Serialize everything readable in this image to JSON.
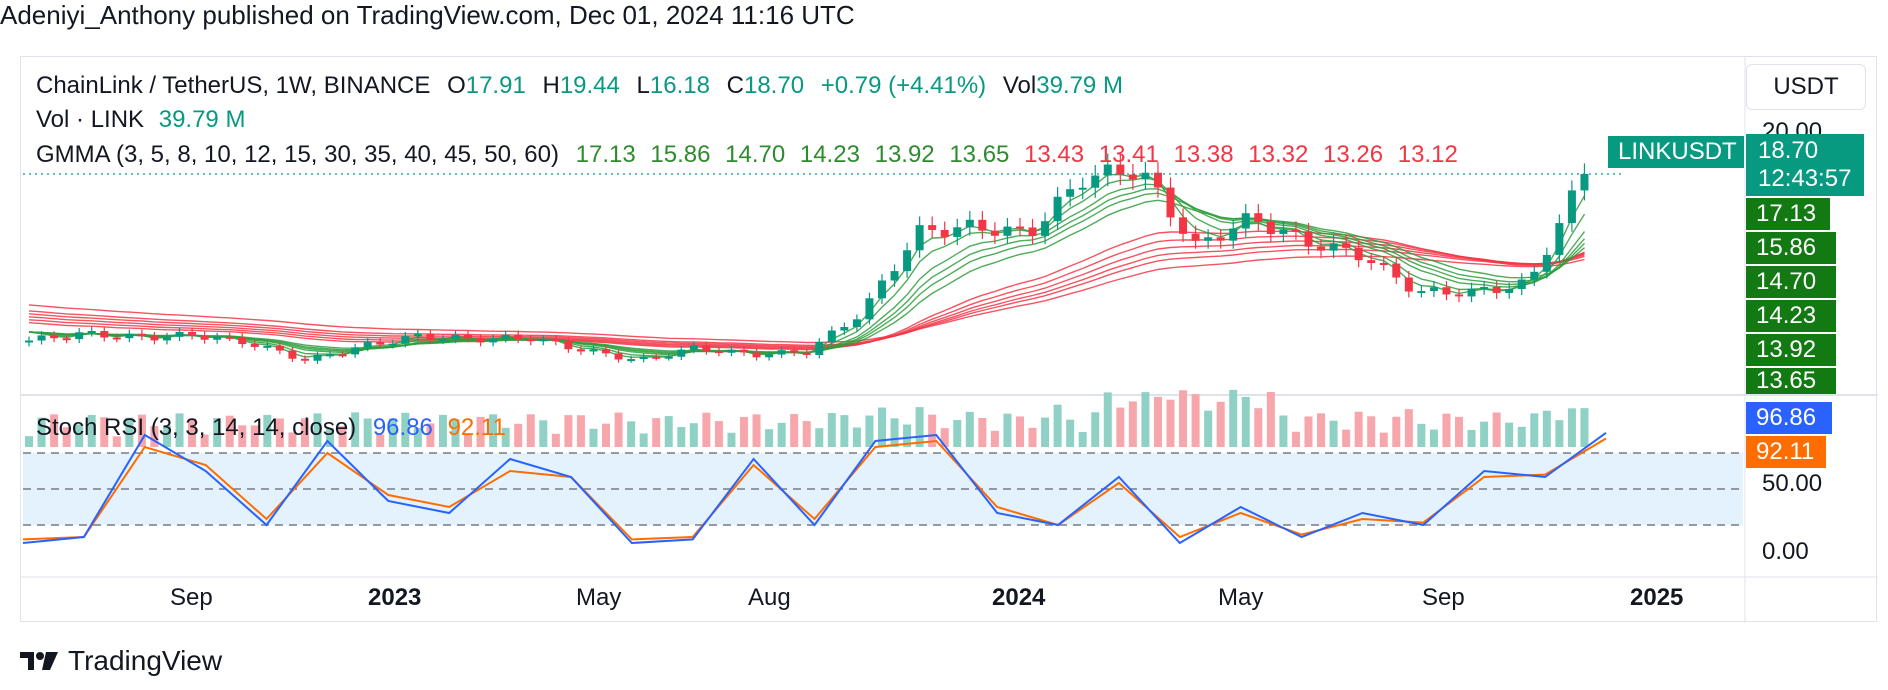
{
  "header": {
    "published_line": "Adeniyi_Anthony published on TradingView.com, Dec 01, 2024 11:16 UTC"
  },
  "symbol_legend": {
    "name": "ChainLink / TetherUS, 1W, BINANCE",
    "o_label": "O",
    "o_value": "17.91",
    "h_label": "H",
    "h_value": "19.44",
    "l_label": "L",
    "l_value": "16.18",
    "c_label": "C",
    "c_value": "18.70",
    "change": "+0.79 (+4.41%)",
    "vol_label": "Vol",
    "vol_value": "39.79 M"
  },
  "volume_legend": {
    "label": "Vol · LINK",
    "value": "39.79 M"
  },
  "gmma_legend": {
    "label": "GMMA (3, 5, 8, 10, 12, 15, 30, 35, 40, 45, 50, 60)",
    "short_values": [
      "17.13",
      "15.86",
      "14.70",
      "14.23",
      "13.92",
      "13.65"
    ],
    "long_values": [
      "13.43",
      "13.41",
      "13.38",
      "13.32",
      "13.26",
      "13.12"
    ]
  },
  "stoch_legend": {
    "label": "Stoch RSI (3, 3, 14, 14, close)",
    "k_value": "96.86",
    "d_value": "92.11"
  },
  "currency": "USDT",
  "price_scale": {
    "ticks": [
      "20.00"
    ],
    "symbol_tag": "LINKUSDT",
    "last_price": "18.70",
    "countdown": "12:43:57",
    "gmma_tags": [
      "17.13",
      "15.86",
      "14.70",
      "14.23",
      "13.92",
      "13.65"
    ]
  },
  "stoch_scale": {
    "ticks": [
      "50.00",
      "0.00"
    ],
    "k_tag": "96.86",
    "d_tag": "92.11"
  },
  "time_axis": [
    {
      "label": "Sep",
      "bold": false
    },
    {
      "label": "2023",
      "bold": true
    },
    {
      "label": "May",
      "bold": false
    },
    {
      "label": "Aug",
      "bold": false
    },
    {
      "label": "2024",
      "bold": true
    },
    {
      "label": "May",
      "bold": false
    },
    {
      "label": "Sep",
      "bold": false
    },
    {
      "label": "2025",
      "bold": true
    }
  ],
  "colors": {
    "up": "#089981",
    "down": "#f23645",
    "vol_up": "#8fd1c4",
    "vol_down": "#f7a6ac",
    "gmma_short": "#2e9e3c",
    "gmma_long": "#f23645",
    "stoch_k": "#2962ff",
    "stoch_d": "#ff6d00",
    "stoch_band": "#e3f2fd"
  },
  "footer": {
    "brand": "TradingView"
  },
  "chart_data": {
    "type": "line",
    "title": "ChainLink / TetherUS, 1W, BINANCE",
    "price_series": {
      "name": "LINKUSDT",
      "x": [
        "2022-07",
        "2022-08",
        "2022-09",
        "2022-10",
        "2022-11",
        "2022-12",
        "2023-01",
        "2023-02",
        "2023-03",
        "2023-04",
        "2023-05",
        "2023-06",
        "2023-07",
        "2023-08",
        "2023-09",
        "2023-10",
        "2023-11",
        "2023-12",
        "2024-01",
        "2024-02",
        "2024-03",
        "2024-04",
        "2024-05",
        "2024-06",
        "2024-07",
        "2024-08",
        "2024-09",
        "2024-10",
        "2024-11"
      ],
      "close": [
        7.0,
        7.5,
        7.2,
        7.4,
        6.8,
        5.6,
        6.6,
        7.3,
        7.1,
        7.2,
        6.3,
        5.6,
        6.5,
        6.0,
        6.2,
        9.0,
        14.6,
        15.0,
        14.5,
        18.5,
        19.0,
        13.6,
        15.6,
        13.9,
        13.0,
        10.4,
        10.4,
        11.0,
        18.7
      ]
    },
    "last_candle": {
      "open": 17.91,
      "high": 19.44,
      "low": 16.18,
      "close": 18.7,
      "volume_m": 39.79
    },
    "gmma_last": {
      "short": [
        17.13,
        15.86,
        14.7,
        14.23,
        13.92,
        13.65
      ],
      "long": [
        13.43,
        13.41,
        13.38,
        13.32,
        13.26,
        13.12
      ]
    },
    "stoch_rsi": {
      "k": [
        5,
        10,
        95,
        65,
        20,
        90,
        40,
        30,
        75,
        60,
        5,
        8,
        75,
        20,
        90,
        95,
        30,
        20,
        60,
        5,
        35,
        10,
        30,
        20,
        65,
        60,
        96.86
      ],
      "d": [
        8,
        10,
        85,
        70,
        25,
        80,
        45,
        35,
        65,
        60,
        8,
        10,
        70,
        25,
        85,
        90,
        35,
        20,
        55,
        10,
        30,
        12,
        25,
        22,
        60,
        62,
        92.11
      ],
      "levels": [
        80,
        50,
        20
      ],
      "ylim": [
        0,
        100
      ]
    },
    "xlabel": "",
    "ylabel": "USDT"
  }
}
